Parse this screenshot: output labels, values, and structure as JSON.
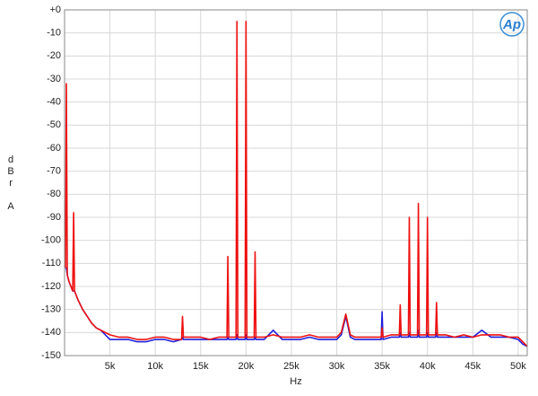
{
  "logo": "Ap",
  "chart_data": {
    "type": "line",
    "x_label": "Hz",
    "y_label": "dBr A",
    "xlim": [
      0,
      51000
    ],
    "ylim": [
      -150,
      0
    ],
    "xticks": [
      {
        "value": 5000,
        "label": "5k"
      },
      {
        "value": 10000,
        "label": "10k"
      },
      {
        "value": 15000,
        "label": "15k"
      },
      {
        "value": 20000,
        "label": "20k"
      },
      {
        "value": 25000,
        "label": "25k"
      },
      {
        "value": 30000,
        "label": "30k"
      },
      {
        "value": 35000,
        "label": "35k"
      },
      {
        "value": 40000,
        "label": "40k"
      },
      {
        "value": 45000,
        "label": "45k"
      },
      {
        "value": 50000,
        "label": "50k"
      }
    ],
    "yticks": [
      {
        "value": 0,
        "label": "+0"
      },
      -10,
      -20,
      -30,
      -40,
      -50,
      -60,
      -70,
      -80,
      -90,
      -100,
      -110,
      -120,
      -130,
      -140,
      -150
    ],
    "grid": true,
    "x": [
      100,
      200,
      300,
      500,
      900,
      1000,
      1100,
      1500,
      2000,
      2500,
      3000,
      3500,
      4000,
      5000,
      6000,
      7000,
      8000,
      9000,
      10000,
      11000,
      12000,
      12900,
      13000,
      13100,
      14000,
      15000,
      16000,
      17000,
      17900,
      18000,
      18100,
      18900,
      19000,
      19100,
      19900,
      20000,
      20100,
      20900,
      21000,
      21100,
      22000,
      23000,
      24000,
      25000,
      26000,
      27000,
      28000,
      29000,
      30000,
      30500,
      31000,
      31500,
      32000,
      33000,
      34000,
      34900,
      35000,
      35100,
      36000,
      36900,
      37000,
      37100,
      37900,
      38000,
      38100,
      38900,
      39000,
      39100,
      39900,
      40000,
      40100,
      40900,
      41000,
      41100,
      42000,
      43000,
      44000,
      45000,
      46000,
      47000,
      48000,
      49000,
      50000,
      50500,
      51000
    ],
    "series": [
      {
        "color": "#1f1fdc",
        "values": [
          -112,
          -112,
          -115,
          -118,
          -122,
          -122,
          -122,
          -126,
          -130,
          -133,
          -136,
          -138,
          -139,
          -143,
          -143,
          -143,
          -144,
          -144,
          -143,
          -143,
          -144,
          -143,
          -142,
          -143,
          -143,
          -143,
          -143,
          -143,
          -143,
          -142,
          -143,
          -143,
          -141,
          -143,
          -143,
          -141,
          -143,
          -143,
          -142,
          -143,
          -143,
          -139,
          -143,
          -143,
          -143,
          -142,
          -143,
          -143,
          -143,
          -141,
          -133,
          -142,
          -143,
          -143,
          -143,
          -143,
          -131,
          -143,
          -142,
          -142,
          -140,
          -142,
          -142,
          -140,
          -142,
          -142,
          -139,
          -142,
          -142,
          -140,
          -142,
          -142,
          -140,
          -142,
          -142,
          -142,
          -142,
          -142,
          -139,
          -142,
          -142,
          -142,
          -143,
          -145,
          -146
        ]
      },
      {
        "color": "#ee1111",
        "values": [
          -112,
          -32,
          -115,
          -118,
          -122,
          -88,
          -122,
          -126,
          -130,
          -133,
          -136,
          -138,
          -139,
          -141,
          -142,
          -142,
          -143,
          -143,
          -142,
          -142,
          -143,
          -143,
          -133,
          -142,
          -142,
          -142,
          -143,
          -142,
          -142,
          -107,
          -142,
          -142,
          -5,
          -142,
          -142,
          -5,
          -142,
          -142,
          -105,
          -142,
          -142,
          -141,
          -142,
          -142,
          -142,
          -141,
          -142,
          -142,
          -142,
          -140,
          -132,
          -141,
          -142,
          -142,
          -142,
          -142,
          -138,
          -142,
          -141,
          -141,
          -128,
          -141,
          -141,
          -90,
          -141,
          -141,
          -84,
          -141,
          -141,
          -90,
          -141,
          -141,
          -127,
          -141,
          -141,
          -142,
          -141,
          -142,
          -141,
          -141,
          -141,
          -142,
          -142,
          -144,
          -146
        ]
      }
    ]
  }
}
